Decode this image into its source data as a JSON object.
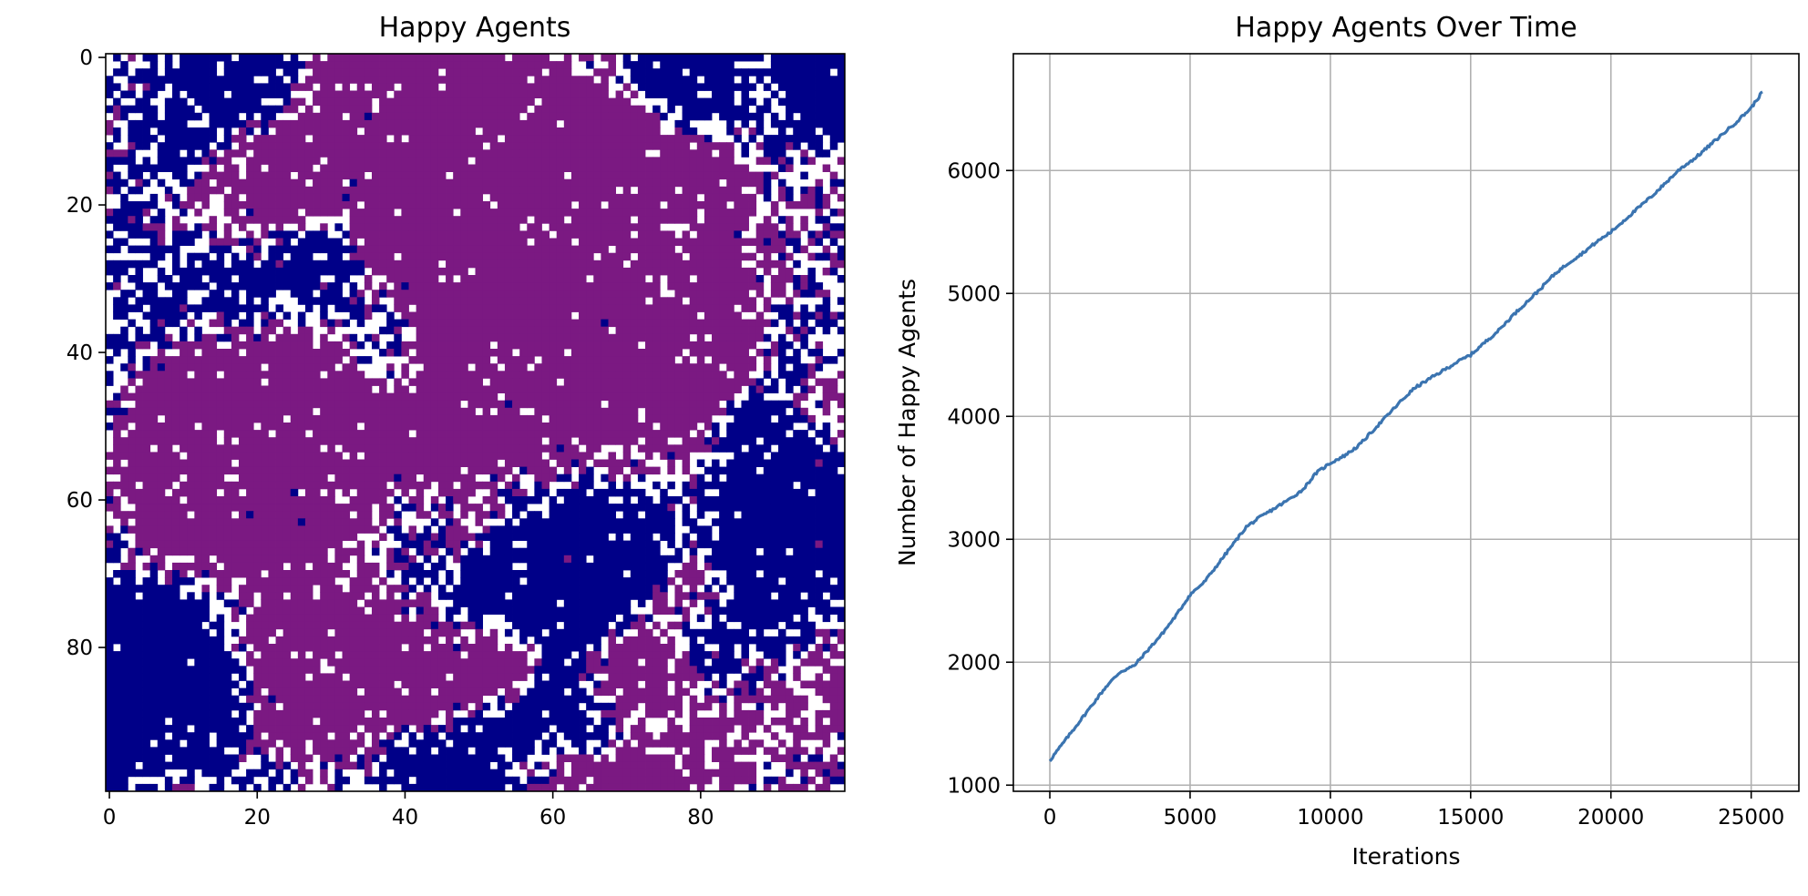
{
  "colors": {
    "blue": "#000088",
    "purple": "#7b1982",
    "empty": "#ffffff",
    "line": "#3b74b0",
    "grid": "#b0b0b0"
  },
  "chart_data": [
    {
      "type": "heatmap",
      "title": "Happy Agents",
      "grid_size": [
        100,
        100
      ],
      "xlim": [
        0,
        99
      ],
      "ylim": [
        99,
        0
      ],
      "x_ticks": [
        0,
        20,
        40,
        60,
        80
      ],
      "y_ticks": [
        0,
        20,
        40,
        60,
        80
      ],
      "categories": [
        "blue agent",
        "purple agent",
        "empty"
      ],
      "pattern": "segregation clusters"
    },
    {
      "type": "line",
      "title": "Happy Agents Over Time",
      "xlabel": "Iterations",
      "ylabel": "Number of Happy Agents",
      "xlim": [
        -1300,
        26700
      ],
      "ylim": [
        950,
        6950
      ],
      "x_ticks": [
        0,
        5000,
        10000,
        15000,
        20000,
        25000
      ],
      "y_ticks": [
        1000,
        2000,
        3000,
        4000,
        5000,
        6000
      ],
      "grid": true,
      "series": [
        {
          "x": [
            0,
            500,
            1000,
            1500,
            2000,
            2500,
            3000,
            3500,
            4000,
            4500,
            5000,
            5500,
            6000,
            6500,
            7000,
            7500,
            8000,
            8500,
            9000,
            9500,
            10000,
            10500,
            11000,
            11500,
            12000,
            12500,
            13000,
            13500,
            14000,
            14500,
            15000,
            15500,
            16000,
            16500,
            17000,
            17500,
            18000,
            18500,
            19000,
            19500,
            20000,
            20500,
            21000,
            21500,
            22000,
            22500,
            23000,
            23500,
            24000,
            24500,
            25000,
            25400
          ],
          "y": [
            1200,
            1350,
            1500,
            1650,
            1800,
            1920,
            1970,
            2100,
            2230,
            2380,
            2550,
            2650,
            2800,
            2950,
            3100,
            3180,
            3250,
            3320,
            3400,
            3540,
            3620,
            3680,
            3760,
            3880,
            4000,
            4120,
            4230,
            4300,
            4370,
            4440,
            4500,
            4600,
            4700,
            4820,
            4930,
            5040,
            5160,
            5250,
            5330,
            5420,
            5500,
            5600,
            5700,
            5800,
            5910,
            6020,
            6100,
            6200,
            6300,
            6400,
            6510,
            6640
          ]
        }
      ]
    }
  ]
}
